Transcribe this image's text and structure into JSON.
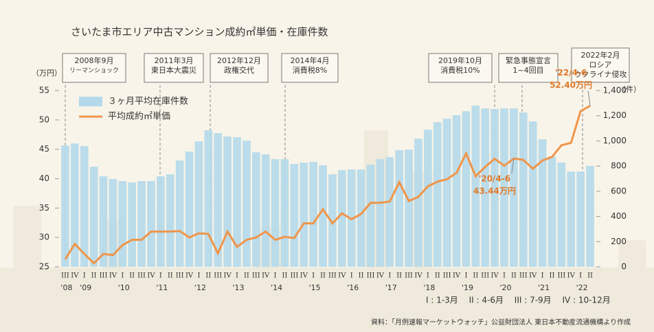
{
  "chart_data": {
    "type": "bar-line",
    "title": "さいたま市エリア中古マンション成約㎡単価・在庫件数",
    "y_label": "（万円）",
    "y2_label": "（件）",
    "categories": [
      "III",
      "IV",
      "I",
      "II",
      "III",
      "IV",
      "I",
      "II",
      "III",
      "IV",
      "I",
      "II",
      "III",
      "IV",
      "I",
      "II",
      "III",
      "IV",
      "I",
      "II",
      "III",
      "IV",
      "I",
      "II",
      "III",
      "IV",
      "I",
      "II",
      "III",
      "IV",
      "I",
      "II",
      "III",
      "IV",
      "I",
      "II",
      "III",
      "IV",
      "I",
      "II",
      "III",
      "IV",
      "I",
      "II",
      "III",
      "IV",
      "I",
      "II",
      "III",
      "IV",
      "I",
      "II",
      "III",
      "IV",
      "I",
      "II"
    ],
    "years": [
      "'08",
      "'09",
      "'10",
      "'11",
      "'12",
      "'13",
      "'14",
      "'15",
      "'16",
      "'17",
      "'18",
      "'19",
      "'20",
      "'21",
      "'22"
    ],
    "series": [
      {
        "name": "３ヶ月平均在庫件数",
        "color": "#b4d9ea",
        "axis": "y2",
        "values": [
          964,
          980,
          959,
          795,
          719,
          697,
          681,
          670,
          681,
          681,
          719,
          735,
          844,
          915,
          997,
          1084,
          1062,
          1035,
          1029,
          1002,
          910,
          893,
          855,
          855,
          817,
          828,
          833,
          806,
          735,
          768,
          773,
          773,
          812,
          855,
          871,
          926,
          931,
          1018,
          1089,
          1149,
          1176,
          1204,
          1236,
          1280,
          1258,
          1253,
          1258,
          1258,
          1225,
          1155,
          1013,
          877,
          828,
          757,
          757,
          801
        ]
      },
      {
        "name": "平均成約㎡単価",
        "color": "#f0954a",
        "values": [
          26.3,
          28.9,
          27.2,
          25.6,
          27.2,
          27.0,
          28.7,
          29.6,
          29.6,
          31.0,
          31.0,
          31.0,
          31.1,
          30.0,
          30.7,
          30.6,
          27.3,
          31.0,
          28.4,
          29.6,
          30.0,
          31.0,
          29.6,
          30.1,
          29.9,
          32.4,
          32.4,
          34.8,
          32.4,
          34.1,
          33.1,
          34.0,
          35.9,
          35.9,
          36.1,
          39.4,
          36.2,
          36.9,
          38.7,
          39.5,
          39.9,
          41.0,
          44.3,
          40.4,
          42.0,
          43.4,
          42.2,
          43.44,
          43.2,
          41.7,
          43.1,
          43.7,
          45.7,
          46.1,
          51.5,
          52.4
        ],
        "value_labels": [
          null,
          null,
          null,
          null,
          null,
          null,
          null,
          null,
          null,
          null,
          null,
          null,
          null,
          null,
          null,
          null,
          null,
          null,
          null,
          null,
          null,
          null,
          null,
          null,
          null,
          null,
          null,
          null,
          null,
          null,
          null,
          null,
          null,
          null,
          null,
          null,
          null,
          null,
          null,
          null,
          null,
          null,
          null,
          null,
          null,
          null,
          null,
          "43.44万円",
          null,
          null,
          null,
          null,
          null,
          null,
          null,
          "52.40万円"
        ]
      }
    ],
    "annotations": [
      "'20/4-6",
      "'22/4-6"
    ],
    "ylim": [
      25,
      55
    ],
    "yticks": [
      25,
      30,
      35,
      40,
      45,
      50,
      55
    ],
    "y2lim": [
      0,
      1400
    ],
    "y2ticks": [
      0,
      200,
      400,
      600,
      800,
      {
        "value": 1000,
        "label": "1,000"
      },
      {
        "value": 1200,
        "label": "1,200"
      },
      {
        "value": 1400,
        "label": "1,400"
      }
    ],
    "events": [
      [
        "2008年9月",
        "リーマンショック"
      ],
      [
        "2011年3月",
        "東日本大震災"
      ],
      [
        "2012年12月",
        "政権交代"
      ],
      [
        "2014年4月",
        "消費税8%"
      ],
      [
        "2019年10月",
        "消費税10%"
      ],
      [
        "緊急事態宣言",
        "1~4回目"
      ],
      [
        "2022年2月",
        "ロシア",
        "ウクライナ侵攻"
      ]
    ],
    "quarter_note": "I : 1-3月　 II : 4-6月　 III : 7-9月　 IV : 10-12月",
    "source": "資料：「月例速報マーケットウォッチ」公益財団法人 東日本不動産流通機構より作成"
  }
}
